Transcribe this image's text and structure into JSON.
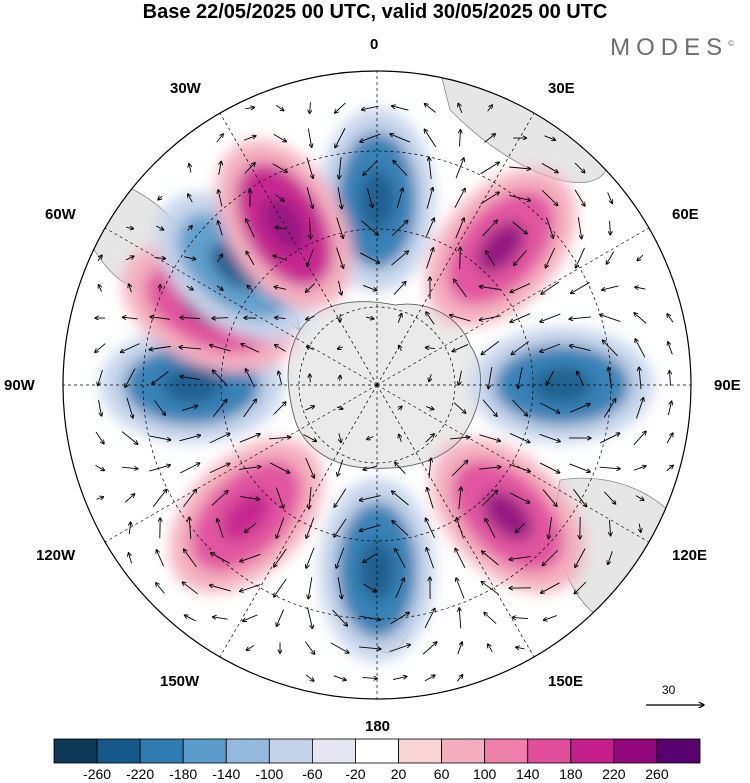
{
  "title": "Base 22/05/2025 00 UTC, valid 30/05/2025 00 UTC",
  "brand": "MODES",
  "longitude_labels": [
    "0",
    "30W",
    "30E",
    "60W",
    "60E",
    "90W",
    "90E",
    "120W",
    "120E",
    "150W",
    "150E",
    "180"
  ],
  "reference_vector": "30",
  "colorbar": {
    "ticks": [
      "-260",
      "-220",
      "-180",
      "-140",
      "-100",
      "-60",
      "-20",
      "20",
      "60",
      "100",
      "140",
      "180",
      "220",
      "260"
    ],
    "colors": [
      "#0d3a57",
      "#14598a",
      "#2f7bb2",
      "#5c9ccb",
      "#93b9dd",
      "#c5d3e9",
      "#e6e6f2",
      "#ffffff",
      "#f7d3d6",
      "#f4adbe",
      "#ee7fab",
      "#e04d9a",
      "#c41f8c",
      "#92077c",
      "#58006e"
    ]
  },
  "anomalies": [
    {
      "lon": 0,
      "level": -200
    },
    {
      "lon": 42,
      "level": 170
    },
    {
      "lon": 90,
      "level": -180
    },
    {
      "lon": 135,
      "level": 180
    },
    {
      "lon": 180,
      "level": -200
    },
    {
      "lon": 225,
      "level": 150
    },
    {
      "lon": 270,
      "level": -190
    },
    {
      "lon": 295,
      "level": 170
    },
    {
      "lon": 310,
      "level": -160
    },
    {
      "lon": 330,
      "level": 200
    }
  ]
}
